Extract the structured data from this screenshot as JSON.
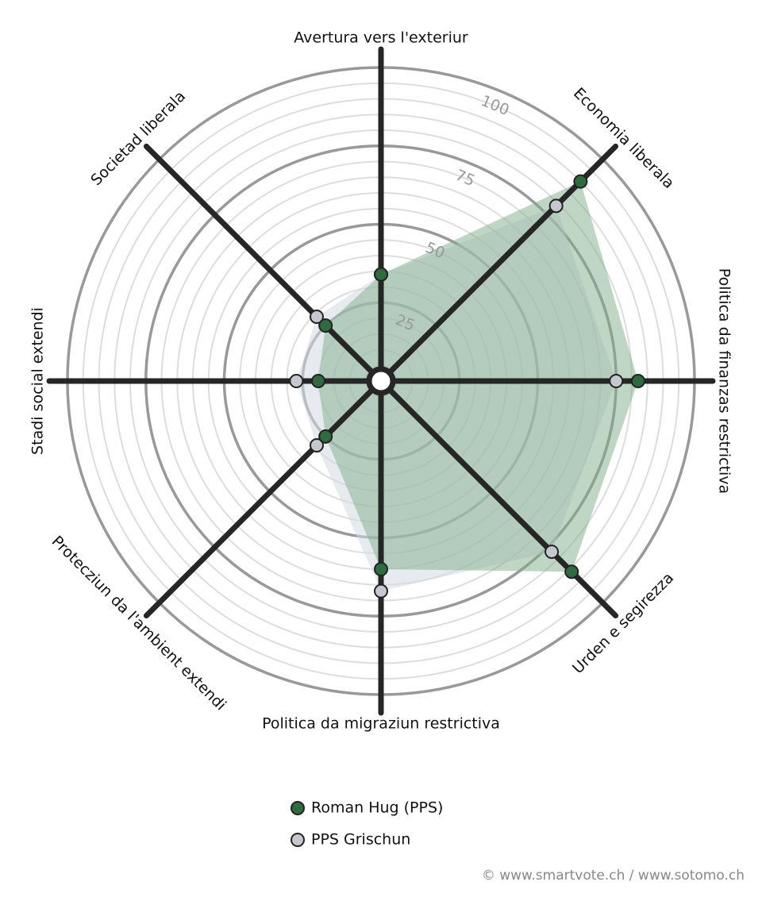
{
  "chart_data": {
    "type": "radar",
    "categories": [
      "Avertura vers l'exteriur",
      "Economia liberala",
      "Politica da finanzas restrictiva",
      "Urden e segirezza",
      "Politica da migraziun restrictiva",
      "Protecziun da l'ambient extendi",
      "Stadi social extendi",
      "Societad liberala"
    ],
    "series": [
      {
        "name": "Roman Hug (PPS)",
        "color": "#2e6b3e",
        "values": [
          34,
          90,
          82,
          86,
          60,
          25,
          20,
          25
        ]
      },
      {
        "name": "PPS Grischun",
        "color": "#c5c9cf",
        "values": [
          34,
          79,
          75,
          77,
          67,
          29,
          27,
          29
        ]
      }
    ],
    "ylim": [
      0,
      100
    ],
    "yticks": [
      25,
      50,
      75,
      100
    ],
    "grid": true,
    "source": "© www.smartvote.ch / www.sotomo.ch"
  }
}
